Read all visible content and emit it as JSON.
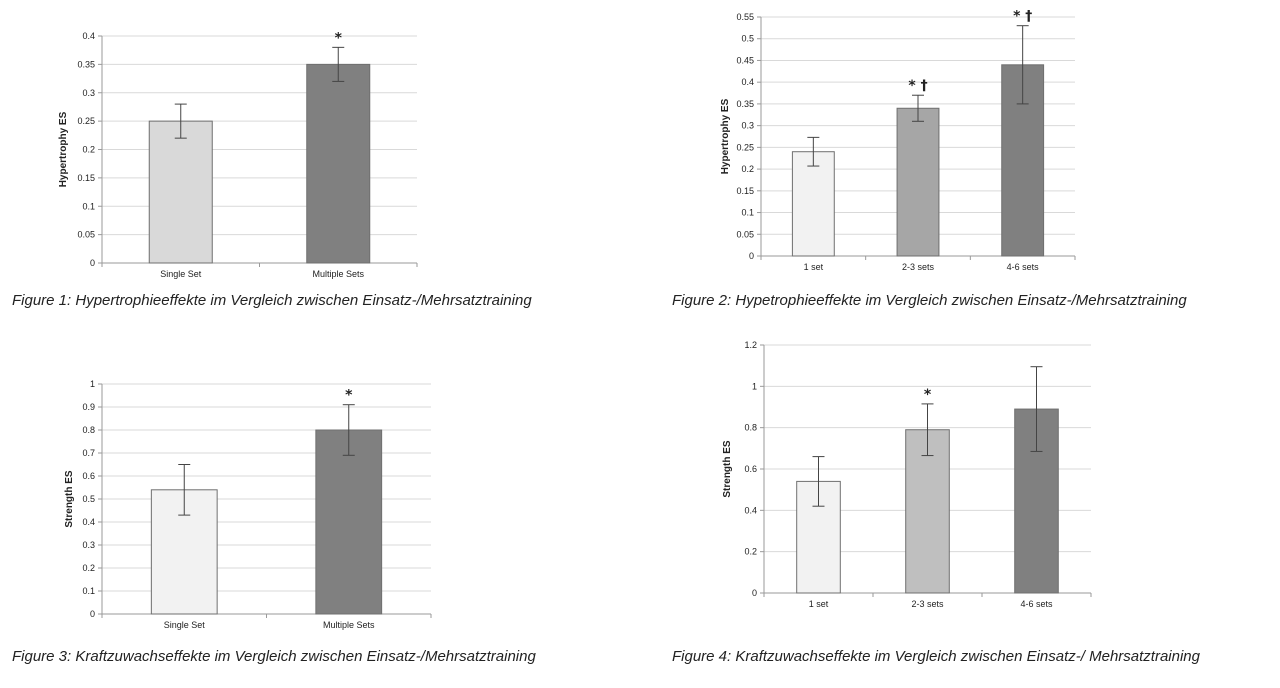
{
  "charts": [
    {
      "chart_data": {
        "type": "bar",
        "categories": [
          "Single Set",
          "Multiple Sets"
        ],
        "values": [
          0.25,
          0.35
        ],
        "errors": [
          0.03,
          0.03
        ],
        "colors": [
          "#d9d9d9",
          "#808080"
        ],
        "marks": [
          "",
          "*"
        ],
        "ylabel": "Hypertrophy ES",
        "ylim": [
          0,
          0.4
        ],
        "ticks": [
          "0",
          "0.05",
          "0.1",
          "0.15",
          "0.2",
          "0.25",
          "0.3",
          "0.35",
          "0.4"
        ],
        "grid": true
      },
      "caption": "Figure 1: Hypertrophieeffekte im Vergleich zwischen Einsatz-/Mehrsatztraining"
    },
    {
      "chart_data": {
        "type": "bar",
        "categories": [
          "1 set",
          "2-3 sets",
          "4-6 sets"
        ],
        "values": [
          0.24,
          0.34,
          0.44
        ],
        "errors": [
          0.033,
          0.03,
          0.09
        ],
        "colors": [
          "#f2f2f2",
          "#a6a6a6",
          "#808080"
        ],
        "marks": [
          "",
          "* †",
          "* †"
        ],
        "ylabel": "Hypertrophy ES",
        "ylim": [
          0,
          0.55
        ],
        "ticks": [
          "0",
          "0.05",
          "0.1",
          "0.15",
          "0.2",
          "0.25",
          "0.3",
          "0.35",
          "0.4",
          "0.45",
          "0.5",
          "0.55"
        ],
        "grid": true
      },
      "caption": "Figure 2: Hypetrophieeffekte im Vergleich zwischen Einsatz-/Mehrsatztraining"
    },
    {
      "chart_data": {
        "type": "bar",
        "categories": [
          "Single Set",
          "Multiple Sets"
        ],
        "values": [
          0.54,
          0.8
        ],
        "errors": [
          0.11,
          0.11
        ],
        "colors": [
          "#f2f2f2",
          "#808080"
        ],
        "marks": [
          "",
          "*"
        ],
        "ylabel": "Strength ES",
        "ylim": [
          0,
          1
        ],
        "ticks": [
          "0",
          "0.1",
          "0.2",
          "0.3",
          "0.4",
          "0.5",
          "0.6",
          "0.7",
          "0.8",
          "0.9",
          "1"
        ],
        "grid": true
      },
      "caption": "Figure 3: Kraftzuwachseffekte im Vergleich zwischen Einsatz-/Mehrsatztraining"
    },
    {
      "chart_data": {
        "type": "bar",
        "categories": [
          "1 set",
          "2-3 sets",
          "4-6 sets"
        ],
        "values": [
          0.54,
          0.79,
          0.89
        ],
        "errors": [
          0.12,
          0.125,
          0.205
        ],
        "colors": [
          "#f2f2f2",
          "#bfbfbf",
          "#808080"
        ],
        "marks": [
          "",
          "*",
          ""
        ],
        "ylabel": "Strength ES",
        "ylim": [
          0,
          1.2
        ],
        "ticks": [
          "0",
          "0.2",
          "0.4",
          "0.6",
          "0.8",
          "1",
          "1.2"
        ],
        "grid": true
      },
      "caption": "Figure 4: Kraftzuwachseffekte im Vergleich zwischen Einsatz-/ Mehrsatztraining"
    }
  ]
}
